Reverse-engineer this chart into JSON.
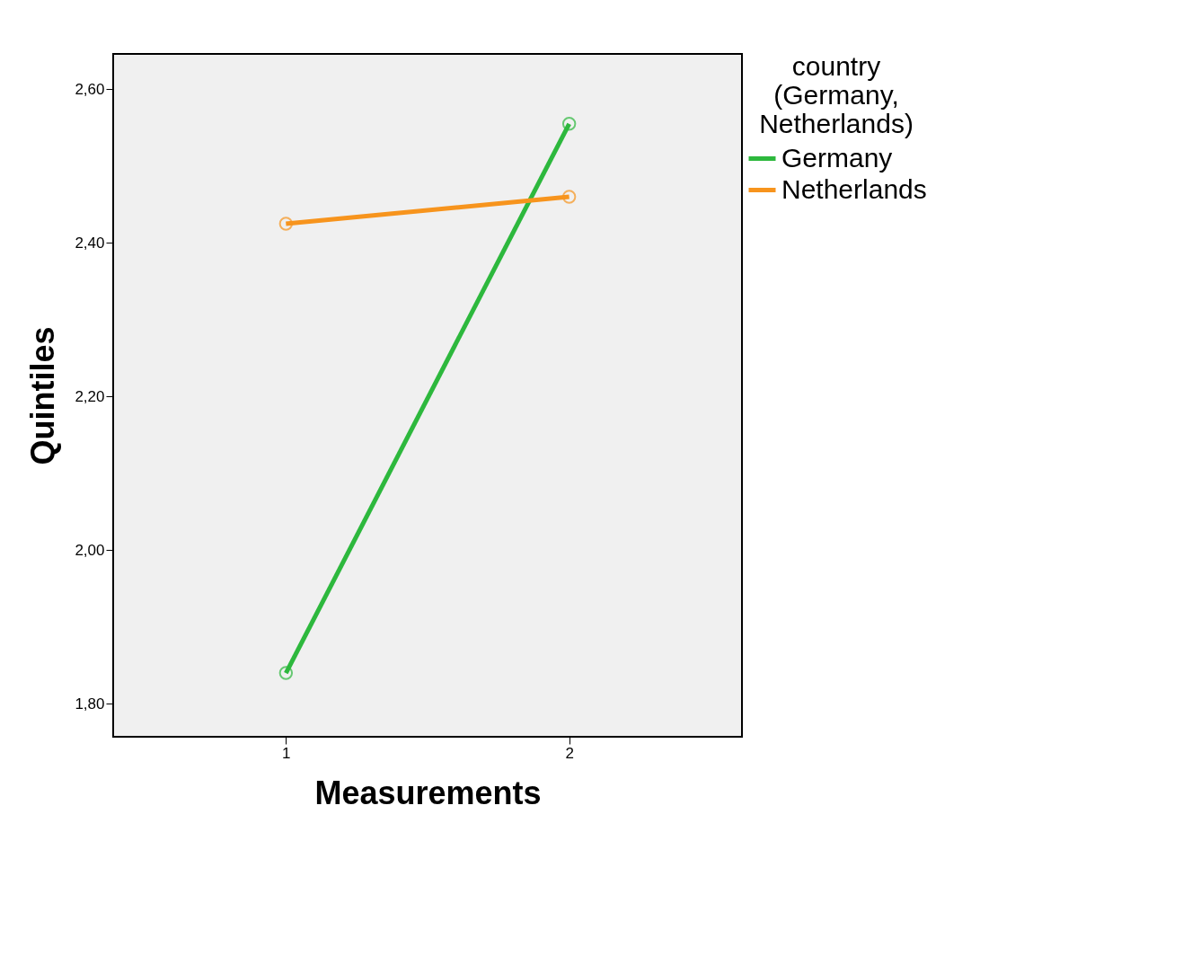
{
  "chart_data": {
    "type": "line",
    "xlabel": "Measurements",
    "ylabel": "Quintiles",
    "legend_title": "country\n(Germany,\nNetherlands)",
    "x": [
      1,
      2
    ],
    "xlim": [
      0.39,
      2.61
    ],
    "xticks": [
      1,
      2
    ],
    "ylim": [
      1.757,
      2.646
    ],
    "yticks": [
      {
        "value": 1.8,
        "label": "1,80"
      },
      {
        "value": 2.0,
        "label": "2,00"
      },
      {
        "value": 2.2,
        "label": "2,20"
      },
      {
        "value": 2.4,
        "label": "2,40"
      },
      {
        "value": 2.6,
        "label": "2,60"
      }
    ],
    "series": [
      {
        "name": "Germany",
        "color": "#2db83d",
        "values": [
          1.84,
          2.555
        ]
      },
      {
        "name": "Netherlands",
        "color": "#f7941d",
        "values": [
          2.425,
          2.46
        ]
      }
    ],
    "marker": "circle",
    "grid": false,
    "legend": "top right"
  }
}
